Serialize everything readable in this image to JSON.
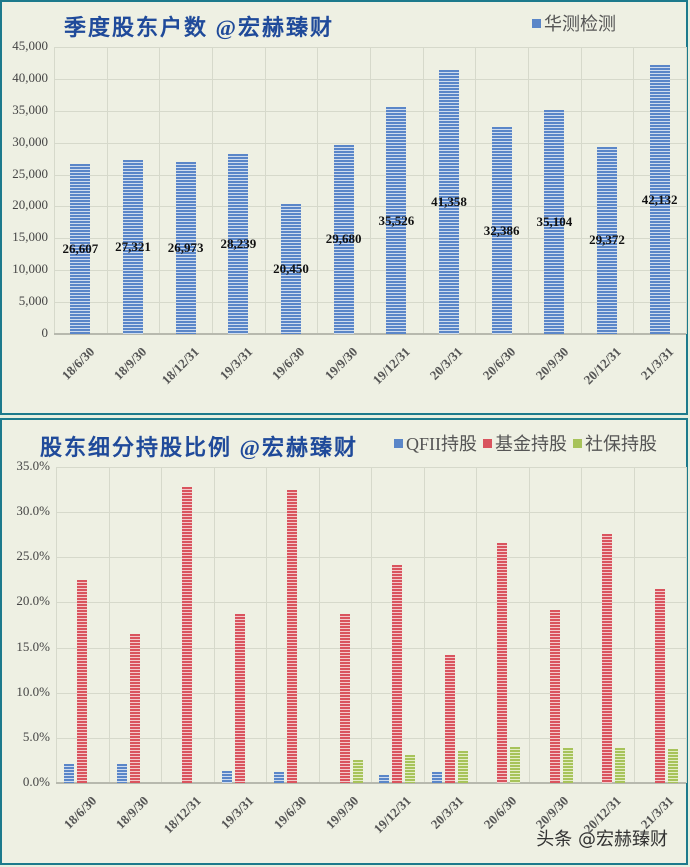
{
  "chart_data": [
    {
      "type": "bar",
      "title": "季度股东户数 @宏赫臻财",
      "legend": [
        "华测检测"
      ],
      "legend_position": "top-right",
      "categories": [
        "18/6/30",
        "18/9/30",
        "18/12/31",
        "19/3/31",
        "19/6/30",
        "19/9/30",
        "19/12/31",
        "20/3/31",
        "20/6/30",
        "20/9/30",
        "20/12/31",
        "21/3/31"
      ],
      "series": [
        {
          "name": "华测检测",
          "color": "#5a86c8",
          "values": [
            26607,
            27321,
            26973,
            28239,
            20450,
            29680,
            35526,
            41358,
            32386,
            35104,
            29372,
            42132
          ]
        }
      ],
      "data_labels": [
        "26,607",
        "27,321",
        "26,973",
        "28,239",
        "20,450",
        "29,680",
        "35,526",
        "41,358",
        "32,386",
        "35,104",
        "29,372",
        "42,132"
      ],
      "yticks": [
        "0",
        "5,000",
        "10,000",
        "15,000",
        "20,000",
        "25,000",
        "30,000",
        "35,000",
        "40,000",
        "45,000"
      ],
      "ylim": [
        0,
        45000
      ],
      "xlabel": "",
      "ylabel": "",
      "grid": true
    },
    {
      "type": "bar",
      "title": "股东细分持股比例 @宏赫臻财",
      "legend": [
        "QFII持股",
        "基金持股",
        "社保持股"
      ],
      "legend_position": "top-right",
      "categories": [
        "18/6/30",
        "18/9/30",
        "18/12/31",
        "19/3/31",
        "19/6/30",
        "19/9/30",
        "19/12/31",
        "20/3/31",
        "20/6/30",
        "20/9/30",
        "20/12/31",
        "21/3/31"
      ],
      "series": [
        {
          "name": "QFII持股",
          "color": "#5a86c8",
          "values": [
            2.1,
            2.1,
            0,
            1.3,
            1.2,
            0,
            0.9,
            1.2,
            0,
            0,
            0,
            0
          ]
        },
        {
          "name": "基金持股",
          "color": "#d9545e",
          "values": [
            22.5,
            16.5,
            32.8,
            18.7,
            32.4,
            18.7,
            24.1,
            14.2,
            26.6,
            19.2,
            27.6,
            21.5
          ]
        },
        {
          "name": "社保持股",
          "color": "#a7c35a",
          "values": [
            0,
            0,
            0,
            0,
            0,
            2.6,
            3.1,
            3.5,
            4.0,
            3.9,
            3.9,
            3.8
          ]
        }
      ],
      "yticks": [
        "0.0%",
        "5.0%",
        "10.0%",
        "15.0%",
        "20.0%",
        "25.0%",
        "30.0%",
        "35.0%"
      ],
      "ylim": [
        0,
        35
      ],
      "xlabel": "",
      "ylabel": "",
      "grid": true
    }
  ],
  "watermark": "头条 @宏赫臻财"
}
